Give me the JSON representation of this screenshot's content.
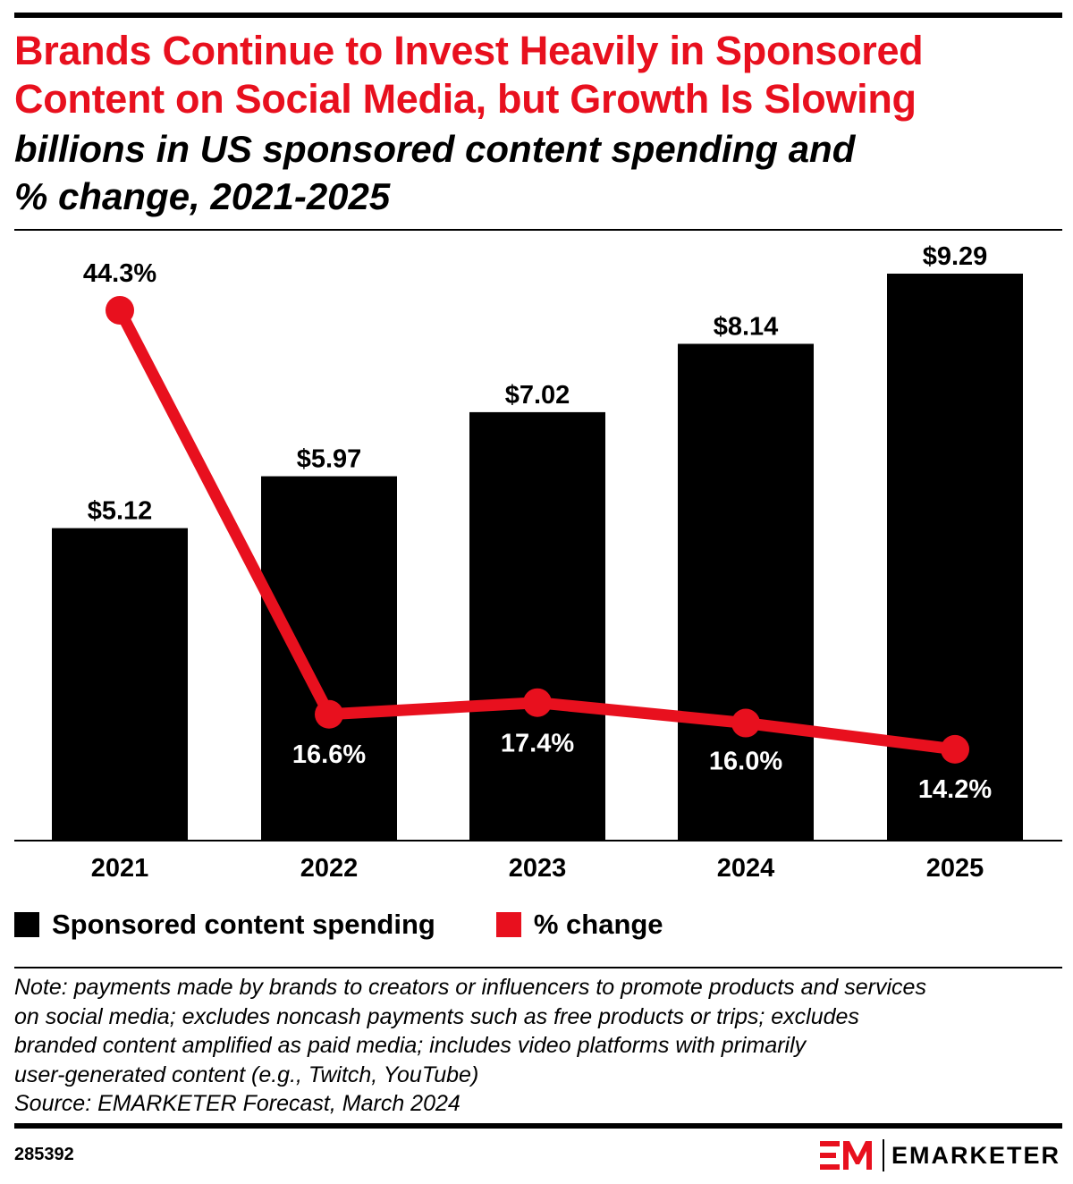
{
  "header": {
    "title_lines": [
      "Brands Continue to Invest Heavily in Sponsored",
      "Content on Social Media, but Growth Is Slowing"
    ],
    "subtitle_lines": [
      "billions in US sponsored content spending and",
      "% change, 2021-2025"
    ]
  },
  "colors": {
    "bar": "#000000",
    "line": "#e8101e",
    "title": "#e8101e"
  },
  "legend": [
    {
      "label": "Sponsored content spending",
      "color": "#000000"
    },
    {
      "label": "% change",
      "color": "#e8101e"
    }
  ],
  "chart_data": {
    "type": "bar",
    "title": "Brands Continue to Invest Heavily in Sponsored Content on Social Media, but Growth Is Slowing",
    "subtitle": "billions in US sponsored content spending and % change, 2021-2025",
    "categories": [
      "2021",
      "2022",
      "2023",
      "2024",
      "2025"
    ],
    "series": [
      {
        "name": "Sponsored content spending",
        "type": "bar",
        "axis": "left",
        "values": [
          5.12,
          5.97,
          7.02,
          8.14,
          9.29
        ],
        "labels": [
          "$5.12",
          "$5.97",
          "$7.02",
          "$8.14",
          "$9.29"
        ]
      },
      {
        "name": "% change",
        "type": "line",
        "axis": "right",
        "values": [
          44.3,
          16.6,
          17.4,
          16.0,
          14.2
        ],
        "labels": [
          "44.3%",
          "16.6%",
          "17.4%",
          "16.0%",
          "14.2%"
        ]
      }
    ],
    "ylim_left": [
      0,
      10
    ],
    "ylim_right": [
      0,
      50
    ],
    "xlabel": "",
    "ylabel": "",
    "grid": false,
    "legend_position": "bottom-left"
  },
  "footer": {
    "note_lines": [
      "Note: payments made by brands to creators or influencers to promote products and services",
      "on social media; excludes noncash payments such as free products or trips; excludes",
      "branded content amplified as paid media; includes video platforms with primarily",
      "user-generated content (e.g., Twitch, YouTube)",
      "Source: EMARKETER Forecast, March 2024"
    ],
    "chart_id": "285392",
    "brand": "EMARKETER",
    "logo_icon": "em-logo-icon"
  }
}
